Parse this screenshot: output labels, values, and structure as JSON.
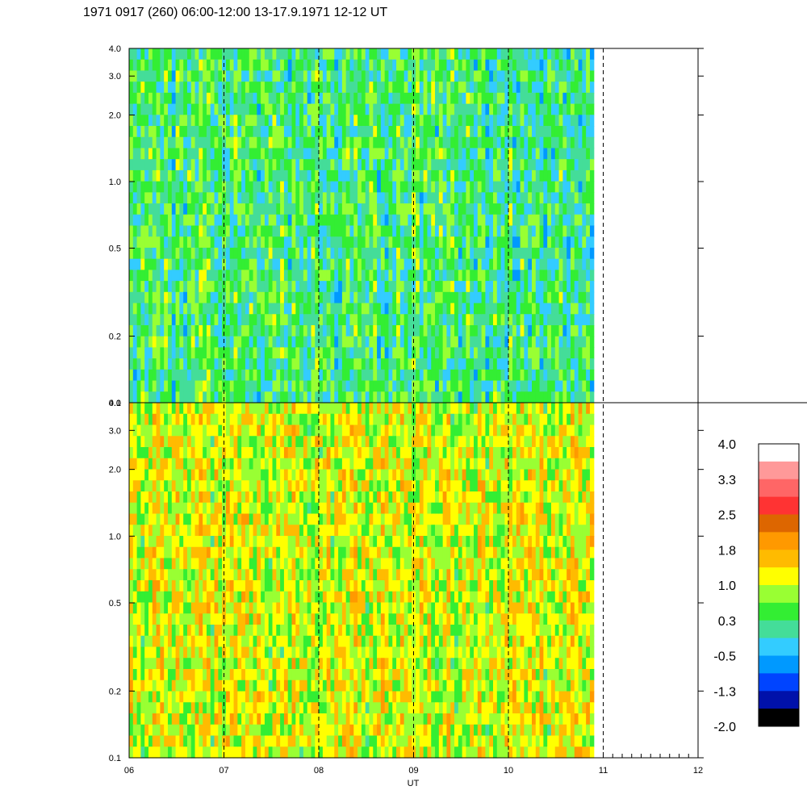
{
  "chart_data": {
    "type": "heatmap",
    "title": "1971 0917 (260) 06:00-12:00 13-17.9.1971  12-12 UT",
    "xlabel": "UT",
    "x_ticks": [
      "06",
      "07",
      "08",
      "09",
      "10",
      "11",
      "12"
    ],
    "x_range": [
      6,
      12
    ],
    "data_end_hour": 10.9,
    "dashed_hours": [
      7,
      8,
      9,
      10,
      11
    ],
    "y_scale": "log",
    "y_range": [
      0.1,
      4.0
    ],
    "y_ticks": [
      "0.1",
      "0.2",
      "0.5",
      "1.0",
      "2.0",
      "3.0",
      "4.0"
    ],
    "y_tick_values": [
      0.1,
      0.2,
      0.5,
      1.0,
      2.0,
      3.0,
      4.0
    ],
    "panels": [
      {
        "id": "upper",
        "dominant_level": 0.2
      },
      {
        "id": "lower",
        "dominant_level": 1.1
      }
    ],
    "colorbar": {
      "labels": [
        "4.0",
        "3.3",
        "2.5",
        "1.8",
        "1.0",
        "0.3",
        "-0.5",
        "-1.3",
        "-2.0"
      ],
      "colors": [
        "#ffffff",
        "#ff9999",
        "#ff6666",
        "#ff3333",
        "#dd6600",
        "#ff9900",
        "#ffbb00",
        "#ffff00",
        "#99ff33",
        "#33ee33",
        "#44dd99",
        "#33ccff",
        "#0099ff",
        "#0044ff",
        "#0011aa",
        "#000000"
      ]
    }
  }
}
